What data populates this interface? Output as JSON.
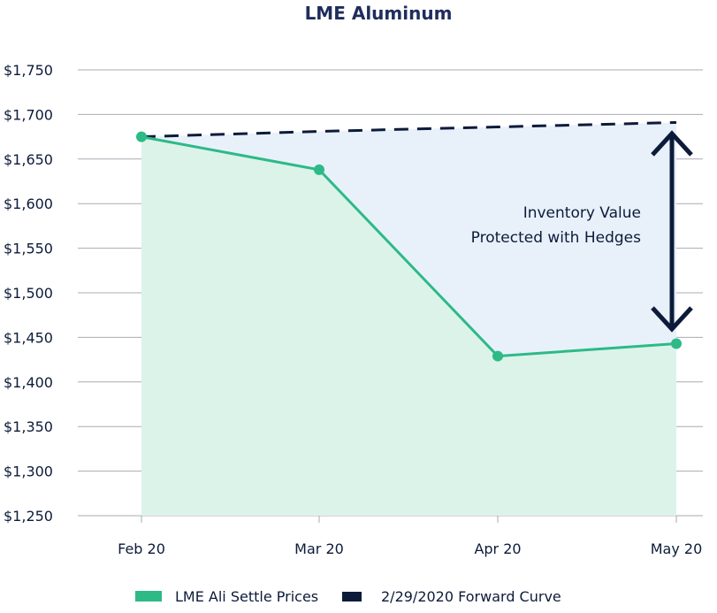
{
  "chart_data": {
    "type": "line",
    "title": "LME Aluminum",
    "xlabel": "",
    "ylabel": "",
    "categories": [
      "Feb 20",
      "Mar 20",
      "Apr 20",
      "May 20"
    ],
    "ylim": [
      1250,
      1750
    ],
    "yticks": [
      1250,
      1300,
      1350,
      1400,
      1450,
      1500,
      1550,
      1600,
      1650,
      1700,
      1750
    ],
    "ytick_labels": [
      "$1,250",
      "$1,300",
      "$1,350",
      "$1,400",
      "$1,450",
      "$1,500",
      "$1,550",
      "$1,600",
      "$1,650",
      "$1,700",
      "$1,750"
    ],
    "grid": true,
    "legend_position": "bottom",
    "series": [
      {
        "name": "LME Ali Settle Prices",
        "values": [
          1675,
          1638,
          1429,
          1443
        ],
        "color": "#2dba86",
        "style": "solid",
        "markers": true,
        "fill": "#dcf3ea"
      },
      {
        "name": "2/29/2020 Forward Curve",
        "values": [
          1675,
          1681,
          1686,
          1691
        ],
        "color": "#0d1b3a",
        "style": "dashed",
        "fill_between": "#e8f1fa"
      }
    ],
    "annotation": {
      "lines": [
        "Inventory Value",
        "Protected with Hedges"
      ],
      "arrow": "double-headed",
      "color": "#0d1b3a"
    }
  }
}
